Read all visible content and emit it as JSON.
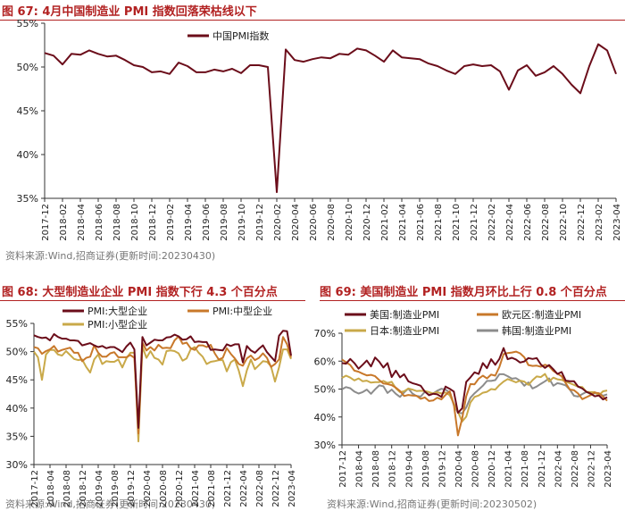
{
  "chart_data": [
    {
      "type": "line",
      "figure_label": "图 67:",
      "title": "4月中国制造业 PMI 指数回落荣枯线以下",
      "source": "资料来源:Wind,招商证券(更新时间:20230430)",
      "x": [
        "2017-12",
        "2018-01",
        "2018-02",
        "2018-03",
        "2018-04",
        "2018-05",
        "2018-06",
        "2018-07",
        "2018-08",
        "2018-09",
        "2018-10",
        "2018-11",
        "2018-12",
        "2019-01",
        "2019-02",
        "2019-03",
        "2019-04",
        "2019-05",
        "2019-06",
        "2019-07",
        "2019-08",
        "2019-09",
        "2019-10",
        "2019-11",
        "2019-12",
        "2020-01",
        "2020-02",
        "2020-03",
        "2020-04",
        "2020-05",
        "2020-06",
        "2020-07",
        "2020-08",
        "2020-09",
        "2020-10",
        "2020-11",
        "2020-12",
        "2021-01",
        "2021-02",
        "2021-03",
        "2021-04",
        "2021-05",
        "2021-06",
        "2021-07",
        "2021-08",
        "2021-09",
        "2021-10",
        "2021-11",
        "2021-12",
        "2022-01",
        "2022-02",
        "2022-03",
        "2022-04",
        "2022-05",
        "2022-06",
        "2022-07",
        "2022-08",
        "2022-09",
        "2022-10",
        "2022-11",
        "2022-12",
        "2023-01",
        "2023-02",
        "2023-03",
        "2023-04"
      ],
      "tick_labels": [
        "2017-12",
        "2018-02",
        "2018-04",
        "2018-06",
        "2018-08",
        "2018-10",
        "2018-12",
        "2019-02",
        "2019-04",
        "2019-06",
        "2019-08",
        "2019-10",
        "2019-12",
        "2020-02",
        "2020-04",
        "2020-06",
        "2020-08",
        "2020-10",
        "2020-12",
        "2021-02",
        "2021-04",
        "2021-06",
        "2021-08",
        "2021-10",
        "2021-12",
        "2022-02",
        "2022-04",
        "2022-06",
        "2022-08",
        "2022-10",
        "2022-12",
        "2023-02",
        "2023-04"
      ],
      "y_ticks": [
        "35%",
        "40%",
        "45%",
        "50%",
        "55%"
      ],
      "ylim": [
        35,
        55
      ],
      "series": [
        {
          "name": "中国PMI指数",
          "color": "#6b0d1a",
          "values": [
            51.6,
            51.3,
            50.3,
            51.5,
            51.4,
            51.9,
            51.5,
            51.2,
            51.3,
            50.8,
            50.2,
            50.0,
            49.4,
            49.5,
            49.2,
            50.5,
            50.1,
            49.4,
            49.4,
            49.7,
            49.5,
            49.8,
            49.3,
            50.2,
            50.2,
            50.0,
            35.7,
            52.0,
            50.8,
            50.6,
            50.9,
            51.1,
            51.0,
            51.5,
            51.4,
            52.1,
            51.9,
            51.3,
            50.6,
            51.9,
            51.1,
            51.0,
            50.9,
            50.4,
            50.1,
            49.6,
            49.2,
            50.1,
            50.3,
            50.1,
            50.2,
            49.5,
            47.4,
            49.6,
            50.2,
            49.0,
            49.4,
            50.1,
            49.2,
            48.0,
            47.0,
            50.1,
            52.6,
            51.9,
            49.2
          ]
        }
      ]
    },
    {
      "type": "line",
      "figure_label": "图 68:",
      "title": "大型制造业企业 PMI 指数下行 4.3 个百分点",
      "source": "资料来源:Wind,招商证券(更新时间:20230430)",
      "tick_labels": [
        "2017-12",
        "2018-04",
        "2018-08",
        "2018-12",
        "2019-04",
        "2019-08",
        "2019-12",
        "2020-04",
        "2020-08",
        "2020-12",
        "2021-04",
        "2021-08",
        "2021-12",
        "2022-04",
        "2022-08",
        "2022-12",
        "2023-04"
      ],
      "y_ticks": [
        "30%",
        "35%",
        "40%",
        "45%",
        "50%",
        "55%"
      ],
      "ylim": [
        30,
        55
      ],
      "series": [
        {
          "name": "PMI:大型企业",
          "color": "#6b0d1a",
          "values": [
            52.9,
            52.6,
            52.4,
            52.5,
            52.0,
            53.1,
            52.6,
            52.3,
            52.3,
            52.0,
            52.0,
            51.9,
            51.1,
            51.3,
            51.5,
            51.1,
            50.8,
            51.0,
            50.6,
            50.8,
            50.8,
            50.4,
            49.9,
            50.9,
            51.6,
            50.4,
            36.5,
            52.6,
            51.1,
            51.6,
            52.1,
            52.0,
            52.0,
            52.5,
            52.6,
            53.0,
            52.7,
            52.1,
            52.2,
            52.7,
            51.7,
            51.8,
            51.7,
            51.7,
            50.3,
            50.4,
            50.3,
            50.2,
            51.3,
            51.0,
            51.3,
            51.3,
            48.1,
            51.0,
            50.2,
            49.8,
            50.5,
            51.1,
            49.9,
            49.1,
            48.3,
            52.8,
            53.7,
            53.6,
            49.3
          ]
        },
        {
          "name": "PMI:中型企业",
          "color": "#c8782a",
          "values": [
            50.8,
            50.6,
            49.6,
            50.1,
            50.4,
            51.0,
            50.0,
            50.3,
            50.5,
            50.7,
            49.8,
            49.8,
            48.3,
            48.9,
            49.1,
            51.1,
            49.8,
            49.1,
            49.1,
            49.7,
            49.9,
            49.0,
            49.0,
            49.0,
            49.4,
            48.9,
            35.5,
            51.6,
            50.2,
            50.8,
            50.2,
            51.2,
            50.6,
            50.7,
            50.6,
            52.0,
            52.7,
            51.4,
            51.6,
            50.6,
            50.3,
            51.1,
            51.1,
            50.8,
            51.2,
            49.7,
            48.6,
            48.9,
            50.6,
            49.6,
            48.8,
            47.8,
            47.5,
            48.8,
            49.3,
            48.5,
            48.9,
            49.7,
            48.9,
            47.3,
            47.8,
            48.6,
            52.6,
            51.3,
            49.0
          ]
        },
        {
          "name": "PMI:小型企业",
          "color": "#c9a949",
          "values": [
            50.0,
            49.0,
            45.0,
            49.5,
            50.3,
            50.3,
            49.5,
            49.3,
            50.1,
            49.4,
            48.7,
            48.5,
            48.6,
            47.3,
            46.3,
            48.6,
            49.5,
            47.8,
            48.3,
            48.2,
            48.2,
            48.6,
            47.2,
            48.8,
            49.8,
            49.8,
            34.1,
            50.9,
            48.9,
            50.1,
            48.9,
            48.6,
            47.7,
            50.1,
            50.2,
            50.1,
            49.7,
            48.4,
            48.8,
            50.4,
            50.8,
            49.8,
            49.1,
            47.8,
            48.2,
            48.3,
            48.5,
            48.5,
            46.5,
            48.1,
            48.6,
            46.6,
            43.9,
            46.7,
            48.6,
            46.9,
            47.6,
            48.3,
            48.2,
            47.4,
            44.7,
            47.2,
            50.4,
            50.4,
            48.7
          ]
        }
      ]
    },
    {
      "type": "line",
      "figure_label": "图 69:",
      "title": "美国制造业 PMI 指数月环比上行 0.8 个百分点",
      "source": "资料来源:Wind,招商证券(更新时间:20230502)",
      "tick_labels": [
        "2017-12",
        "2018-04",
        "2018-08",
        "2018-12",
        "2019-04",
        "2019-08",
        "2019-12",
        "2020-04",
        "2020-08",
        "2020-12",
        "2021-04",
        "2021-08",
        "2021-12",
        "2022-04",
        "2022-08",
        "2022-12",
        "2023-04"
      ],
      "y_ticks": [
        "30%",
        "40%",
        "50%",
        "60%",
        "70%"
      ],
      "ylim": [
        30,
        70
      ],
      "series": [
        {
          "name": "美国:制造业PMI",
          "color": "#6b0d1a",
          "values": [
            59.3,
            59.1,
            60.8,
            59.3,
            57.3,
            58.7,
            60.2,
            58.1,
            61.3,
            59.8,
            57.7,
            59.3,
            54.3,
            56.6,
            54.2,
            55.3,
            52.8,
            52.1,
            51.7,
            51.2,
            49.1,
            47.8,
            48.3,
            48.1,
            47.2,
            50.9,
            50.1,
            49.1,
            41.5,
            43.1,
            52.6,
            54.2,
            56.0,
            55.4,
            59.3,
            57.5,
            60.7,
            58.7,
            60.8,
            64.7,
            60.7,
            61.2,
            60.6,
            59.5,
            59.9,
            61.1,
            60.8,
            61.1,
            58.8,
            57.6,
            58.6,
            57.1,
            55.4,
            56.1,
            53.0,
            52.8,
            52.8,
            50.9,
            50.2,
            49.0,
            48.4,
            47.4,
            47.7,
            46.3,
            47.1
          ]
        },
        {
          "name": "欧元区:制造业PMI",
          "color": "#c8782a",
          "values": [
            60.6,
            59.6,
            58.6,
            56.6,
            56.2,
            55.5,
            54.9,
            55.1,
            54.6,
            53.2,
            52.0,
            51.8,
            51.4,
            50.5,
            49.3,
            47.5,
            47.9,
            47.7,
            47.6,
            46.5,
            47.0,
            45.7,
            45.9,
            46.9,
            46.3,
            47.9,
            49.2,
            44.5,
            33.4,
            39.4,
            47.4,
            51.8,
            51.7,
            53.7,
            54.8,
            53.8,
            55.2,
            54.8,
            57.9,
            62.5,
            62.9,
            63.1,
            63.4,
            62.8,
            61.4,
            58.6,
            58.3,
            58.4,
            58.0,
            58.7,
            58.2,
            56.5,
            55.5,
            54.6,
            52.1,
            49.8,
            49.6,
            48.4,
            46.4,
            47.1,
            47.8,
            48.8,
            48.5,
            47.3,
            45.8
          ]
        },
        {
          "name": "日本:制造业PMI",
          "color": "#c9a949",
          "values": [
            54.0,
            54.8,
            54.1,
            53.1,
            53.8,
            52.8,
            53.0,
            52.3,
            52.5,
            52.5,
            52.9,
            52.2,
            52.6,
            50.3,
            48.9,
            49.2,
            50.2,
            49.8,
            49.3,
            49.4,
            49.3,
            48.9,
            48.4,
            48.9,
            48.4,
            48.8,
            47.8,
            44.8,
            41.9,
            38.4,
            40.1,
            45.2,
            47.2,
            47.7,
            48.7,
            49.0,
            50.0,
            49.8,
            51.4,
            52.7,
            53.6,
            53.0,
            52.4,
            53.0,
            52.7,
            51.5,
            53.2,
            54.5,
            54.3,
            55.4,
            52.7,
            54.1,
            53.5,
            53.3,
            52.7,
            52.1,
            51.5,
            50.8,
            50.7,
            49.0,
            48.9,
            48.9,
            47.7,
            49.2,
            49.5
          ]
        },
        {
          "name": "韩国:制造业PMI",
          "color": "#8c8c8c",
          "values": [
            49.9,
            50.7,
            50.3,
            49.1,
            48.4,
            48.9,
            49.8,
            48.3,
            49.9,
            51.3,
            51.0,
            48.6,
            49.8,
            48.3,
            47.2,
            48.8,
            50.2,
            48.4,
            47.5,
            47.3,
            49.0,
            48.0,
            48.4,
            49.4,
            50.1,
            49.8,
            48.7,
            44.2,
            41.6,
            41.3,
            43.4,
            46.9,
            48.5,
            49.8,
            51.2,
            52.9,
            52.9,
            53.2,
            55.3,
            55.3,
            54.6,
            53.7,
            53.9,
            53.0,
            51.2,
            52.4,
            50.2,
            50.9,
            51.9,
            52.8,
            53.8,
            51.2,
            52.1,
            51.8,
            51.3,
            49.8,
            47.6,
            47.3,
            48.2,
            49.0,
            48.2,
            48.5,
            48.5,
            47.6,
            48.1
          ]
        }
      ]
    }
  ]
}
